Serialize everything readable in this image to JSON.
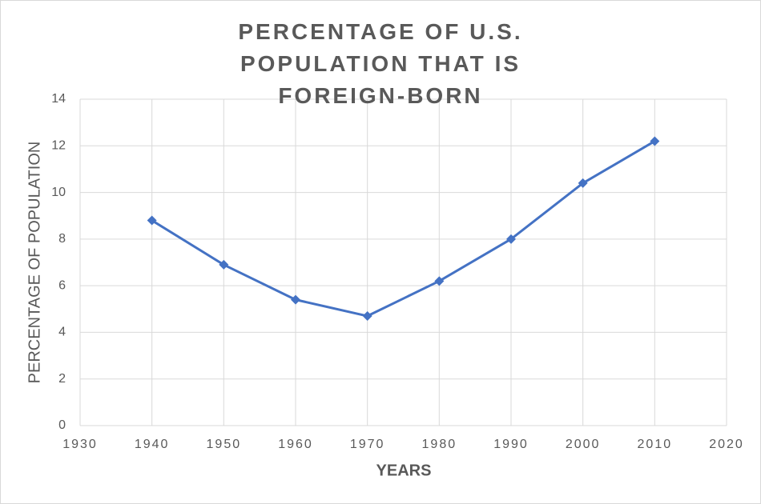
{
  "chart_data": {
    "type": "line",
    "title": "PERCENTAGE OF U.S. POPULATION THAT IS FOREIGN-BORN",
    "x_label": "YEARS",
    "y_label": "PERCENTAGE OF POPULATION",
    "x": [
      1940,
      1950,
      1960,
      1970,
      1980,
      1990,
      2000,
      2010
    ],
    "values": [
      8.8,
      6.9,
      5.4,
      4.7,
      6.2,
      8.0,
      10.4,
      12.2
    ],
    "color": "#4472c4",
    "xlim": [
      1930,
      2020
    ],
    "xticks": [
      1930,
      1940,
      1950,
      1960,
      1970,
      1980,
      1990,
      2000,
      2010,
      2020
    ],
    "ylim": [
      0,
      14
    ],
    "yticks": [
      0,
      2,
      4,
      6,
      8,
      10,
      12,
      14
    ],
    "grid": true
  }
}
